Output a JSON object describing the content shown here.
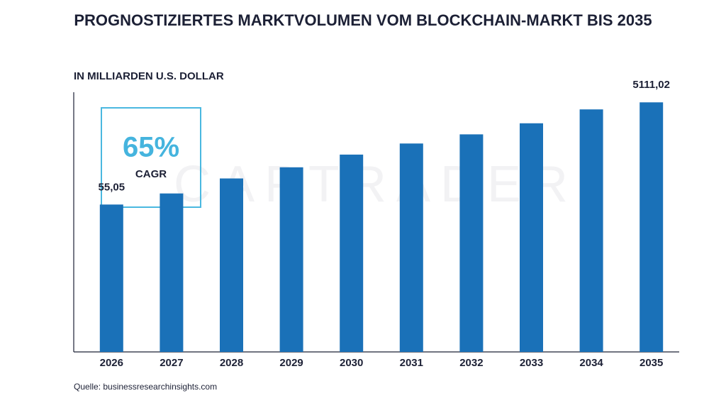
{
  "chart_data": {
    "type": "bar",
    "title": "PROGNOSTIZIERTES MARKTVOLUMEN VOM BLOCKCHAIN-MARKT BIS 2035",
    "subtitle": "IN MILLIARDEN U.S. DOLLAR",
    "categories": [
      "2026",
      "2027",
      "2028",
      "2029",
      "2030",
      "2031",
      "2032",
      "2033",
      "2034",
      "2035"
    ],
    "values": [
      55.05,
      90,
      175,
      287,
      504,
      824,
      1236,
      2020,
      3738,
      5111.02
    ],
    "value_labels": [
      "55,05",
      null,
      null,
      null,
      null,
      null,
      null,
      null,
      null,
      "5111,02"
    ],
    "color": "#1a71b8",
    "log_scale": true,
    "ylim": [
      0.08,
      8000
    ],
    "annotation": {
      "value": "65%",
      "label": "CAGR"
    },
    "watermark": "CAPTRADER",
    "source": "Quelle: businessresearchinsights.com"
  }
}
